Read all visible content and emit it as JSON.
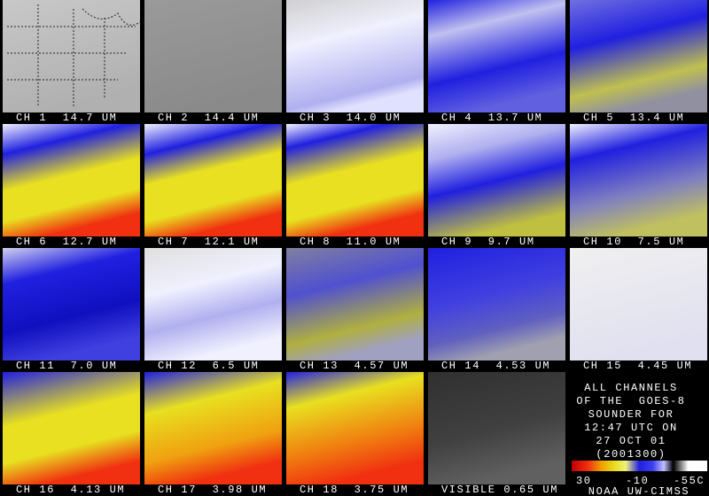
{
  "panels": [
    {
      "label": "CH 1  14.7 UM"
    },
    {
      "label": "CH 2  14.4 UM"
    },
    {
      "label": "CH 3  14.0 UM"
    },
    {
      "label": "CH 4  13.7 UM"
    },
    {
      "label": "CH 5  13.4 UM"
    },
    {
      "label": "CH 6  12.7 UM"
    },
    {
      "label": "CH 7  12.1 UM"
    },
    {
      "label": "CH 8  11.0 UM"
    },
    {
      "label": "CH 9  9.7 UM"
    },
    {
      "label": "CH 10  7.5 UM"
    },
    {
      "label": "CH 11  7.0 UM"
    },
    {
      "label": "CH 12  6.5 UM"
    },
    {
      "label": "CH 13  4.57 UM"
    },
    {
      "label": "CH 14  4.53 UM"
    },
    {
      "label": "CH 15  4.45 UM"
    },
    {
      "label": "CH 16  4.13 UM"
    },
    {
      "label": "CH 17  3.98 UM"
    },
    {
      "label": "CH 18  3.75 UM"
    },
    {
      "label": "VISIBLE 0.65 UM"
    }
  ],
  "info": {
    "lines": [
      "ALL CHANNELS",
      "OF THE  GOES-8",
      "SOUNDER FOR",
      "12:47 UTC ON",
      "27 OCT 01",
      "(2001300)"
    ]
  },
  "colorbar": {
    "labels": [
      "30",
      "-10",
      "-55C"
    ],
    "credit": "NOAA UW-CIMSS"
  }
}
